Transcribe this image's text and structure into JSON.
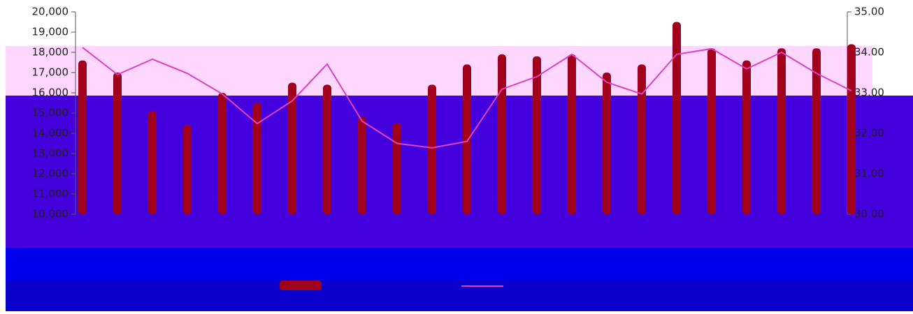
{
  "chart_data": {
    "type": "bar-line",
    "categories": [
      null,
      null,
      null,
      null,
      null,
      null,
      null,
      null,
      null,
      null,
      null,
      null,
      null,
      null,
      null,
      null,
      null,
      null,
      null,
      null,
      null,
      null,
      null
    ],
    "series": [
      {
        "type": "bar",
        "color": "#a0001c",
        "values": [
          17600,
          17000,
          15100,
          14400,
          16000,
          15500,
          16500,
          16400,
          14800,
          14500,
          16400,
          17400,
          17900,
          17800,
          17900,
          17000,
          17400,
          19500,
          18200,
          17600,
          18200,
          18200,
          18400
        ]
      },
      {
        "type": "line",
        "axis": "y2",
        "color": "#e040c0",
        "values": [
          34.12,
          33.45,
          33.83,
          33.48,
          32.97,
          32.24,
          32.8,
          33.71,
          32.3,
          31.75,
          31.64,
          31.8,
          33.09,
          33.4,
          33.95,
          33.26,
          32.97,
          33.95,
          34.09,
          33.59,
          34.0,
          33.48,
          33.05
        ]
      }
    ],
    "ylim": [
      10000,
      20000
    ],
    "yticks": [
      {
        "value": 20000,
        "label": "20,000"
      },
      {
        "value": 19000,
        "label": "19,000"
      },
      {
        "value": 18000,
        "label": "18,000"
      },
      {
        "value": 17000,
        "label": "17,000"
      },
      {
        "value": 16000,
        "label": "16,000"
      },
      {
        "value": 15000,
        "label": "15,000"
      },
      {
        "value": 14000,
        "label": "14,000"
      },
      {
        "value": 13000,
        "label": "13,000"
      },
      {
        "value": 12000,
        "label": "12,000"
      },
      {
        "value": 11000,
        "label": "11,000"
      },
      {
        "value": 10000,
        "label": "10,000"
      }
    ],
    "y2lim": [
      30,
      35
    ],
    "y2ticks": [
      {
        "value": 35,
        "label": "35.00"
      },
      {
        "value": 34,
        "label": "34.00"
      },
      {
        "value": 33,
        "label": "33.00"
      },
      {
        "value": 32,
        "label": "32.00"
      },
      {
        "value": 31,
        "label": "31.00"
      },
      {
        "value": 30,
        "label": "30.00"
      }
    ]
  }
}
